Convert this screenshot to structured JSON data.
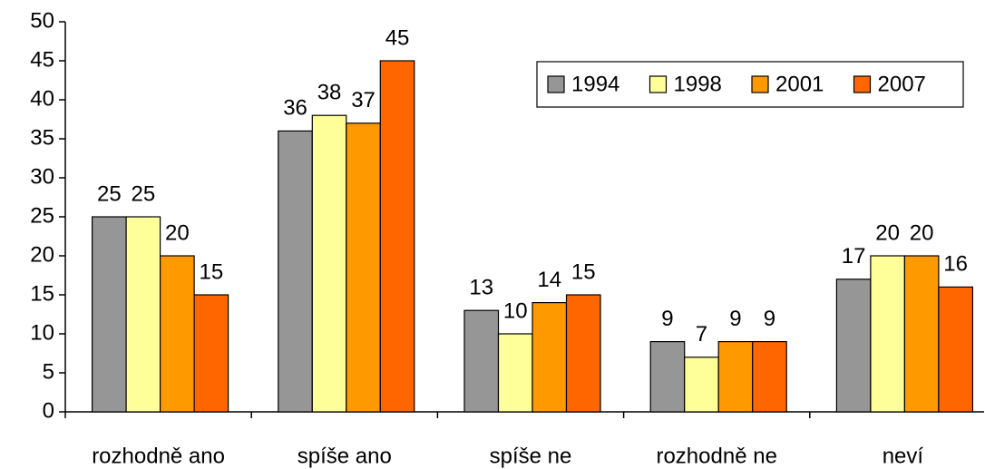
{
  "chart_data": {
    "type": "bar",
    "categories": [
      "rozhodně ano",
      "spíše ano",
      "spíše ne",
      "rozhodně ne",
      "neví"
    ],
    "series": [
      {
        "name": "1994",
        "color": "#969696",
        "values": [
          25,
          36,
          13,
          9,
          17
        ]
      },
      {
        "name": "1998",
        "color": "#ffff99",
        "values": [
          25,
          38,
          10,
          7,
          20
        ]
      },
      {
        "name": "2001",
        "color": "#ff9900",
        "values": [
          20,
          37,
          14,
          9,
          20
        ]
      },
      {
        "name": "2007",
        "color": "#ff6600",
        "values": [
          15,
          45,
          15,
          9,
          16
        ]
      }
    ],
    "ylim": [
      0,
      50
    ],
    "yticks": [
      0,
      5,
      10,
      15,
      20,
      25,
      30,
      35,
      40,
      45,
      50
    ],
    "grid": false,
    "legend": "top-right"
  }
}
